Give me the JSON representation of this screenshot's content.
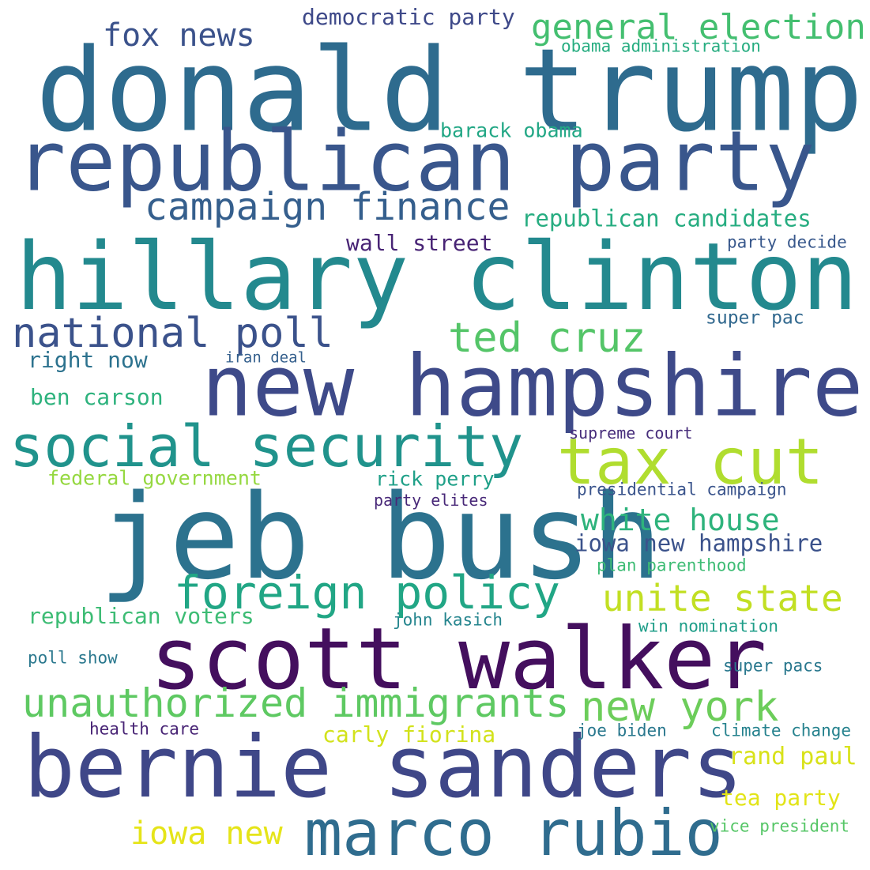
{
  "words": [
    {
      "text": "donald trump",
      "color": "#2e6b8e"
    },
    {
      "text": "republican party",
      "color": "#39568c"
    },
    {
      "text": "hillary clinton",
      "color": "#23898e"
    },
    {
      "text": "new hampshire",
      "color": "#3e4a89"
    },
    {
      "text": "jeb bush",
      "color": "#2c728e"
    },
    {
      "text": "scott walker",
      "color": "#440f5e"
    },
    {
      "text": "bernie sanders",
      "color": "#3f4788"
    },
    {
      "text": "marco rubio",
      "color": "#2f6c8e"
    },
    {
      "text": "social security",
      "color": "#20938c"
    },
    {
      "text": "tax cut",
      "color": "#b0dd2f"
    },
    {
      "text": "foreign policy",
      "color": "#21a685"
    },
    {
      "text": "unauthorized immigrants",
      "color": "#5ec962"
    },
    {
      "text": "campaign finance",
      "color": "#355f8d"
    },
    {
      "text": "national poll",
      "color": "#3b528b"
    },
    {
      "text": "ted cruz",
      "color": "#54c568"
    },
    {
      "text": "general election",
      "color": "#44bf70"
    },
    {
      "text": "fox news",
      "color": "#3b528b"
    },
    {
      "text": "unite state",
      "color": "#c2df23"
    },
    {
      "text": "new york",
      "color": "#6ccd5a"
    },
    {
      "text": "white house",
      "color": "#2eb37c"
    },
    {
      "text": "iowa new",
      "color": "#e5e419"
    },
    {
      "text": "republican candidates",
      "color": "#27ad81"
    },
    {
      "text": "iowa new hampshire",
      "color": "#3b528b"
    },
    {
      "text": "democratic party",
      "color": "#3e4989"
    },
    {
      "text": "wall street",
      "color": "#482475"
    },
    {
      "text": "ben carson",
      "color": "#2db27d"
    },
    {
      "text": "right now",
      "color": "#2c728e"
    },
    {
      "text": "republican voters",
      "color": "#3dbc74"
    },
    {
      "text": "carly fiorina",
      "color": "#d2e21b"
    },
    {
      "text": "rand paul",
      "color": "#d8e219"
    },
    {
      "text": "tea party",
      "color": "#e2e418"
    },
    {
      "text": "barack obama",
      "color": "#22a785"
    },
    {
      "text": "federal government",
      "color": "#95d840"
    },
    {
      "text": "rick perry",
      "color": "#1fa088"
    },
    {
      "text": "super pac",
      "color": "#31688e"
    },
    {
      "text": "obama administration",
      "color": "#27ad81"
    },
    {
      "text": "party decide",
      "color": "#38588c"
    },
    {
      "text": "presidential campaign",
      "color": "#3a548c"
    },
    {
      "text": "supreme court",
      "color": "#472d7b"
    },
    {
      "text": "party elites",
      "color": "#482878"
    },
    {
      "text": "plan parenthood",
      "color": "#3dbc74"
    },
    {
      "text": "john kasich",
      "color": "#25858e"
    },
    {
      "text": "win nomination",
      "color": "#1f9e89"
    },
    {
      "text": "poll show",
      "color": "#2a788e"
    },
    {
      "text": "super pacs",
      "color": "#2a788e"
    },
    {
      "text": "health care",
      "color": "#482475"
    },
    {
      "text": "joe biden",
      "color": "#2a788e"
    },
    {
      "text": "climate change",
      "color": "#26828e"
    },
    {
      "text": "vice president",
      "color": "#56c667"
    },
    {
      "text": "iran deal",
      "color": "#35608d"
    }
  ]
}
